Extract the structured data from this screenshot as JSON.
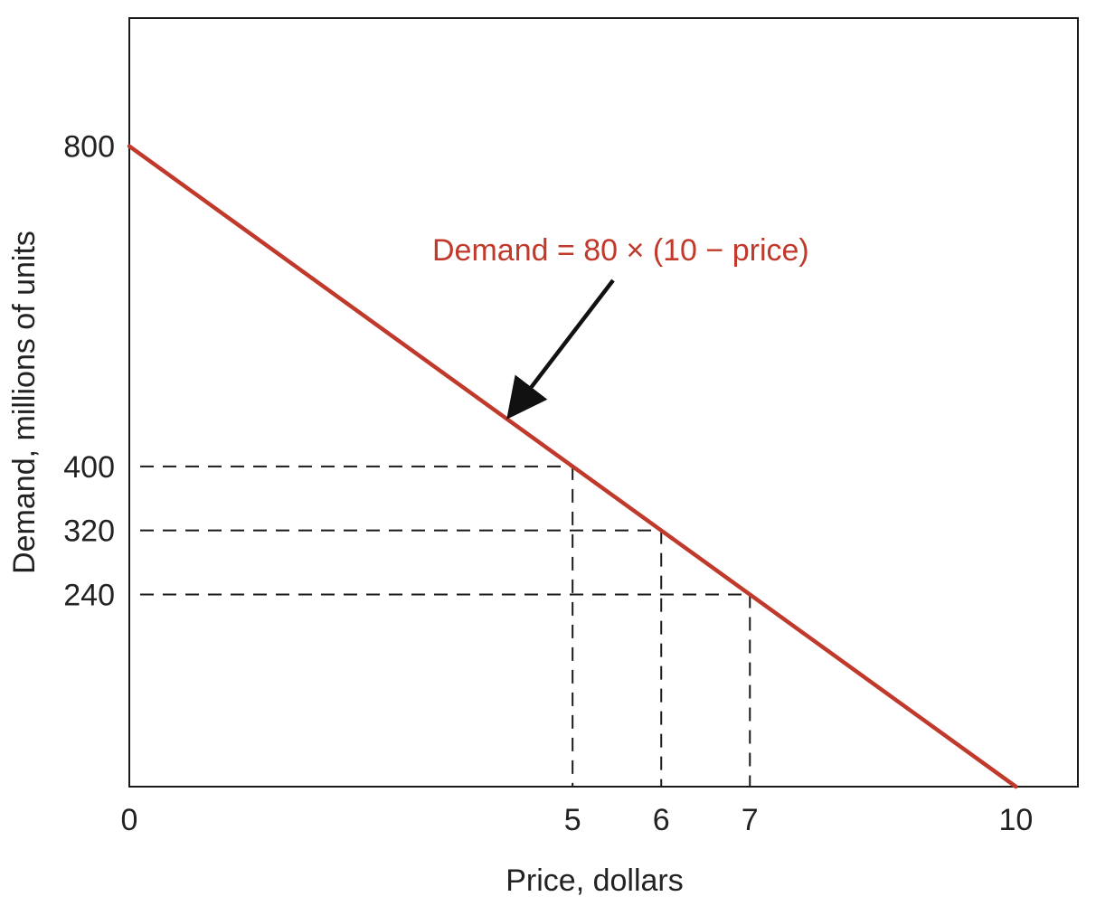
{
  "chart_data": {
    "type": "line",
    "title": "",
    "xlabel": "Price, dollars",
    "ylabel": "Demand, millions of units",
    "xlim": [
      0,
      10.7
    ],
    "ylim": [
      0,
      960
    ],
    "grid": false,
    "x_ticks": [
      0,
      5,
      6,
      7,
      10
    ],
    "y_ticks": [
      240,
      320,
      400,
      800
    ],
    "series": [
      {
        "x": [
          0,
          10
        ],
        "y": [
          800,
          0
        ],
        "color": "#c0392b"
      }
    ],
    "reference_points": [
      {
        "x": 5,
        "y": 400
      },
      {
        "x": 6,
        "y": 320
      },
      {
        "x": 7,
        "y": 240
      }
    ],
    "annotation": {
      "text": "Demand = 80 × (10 − price)",
      "color": "#c0392b",
      "arrow_target": {
        "x": 4.25,
        "y": 460
      },
      "arrow_color": "#111111"
    }
  }
}
